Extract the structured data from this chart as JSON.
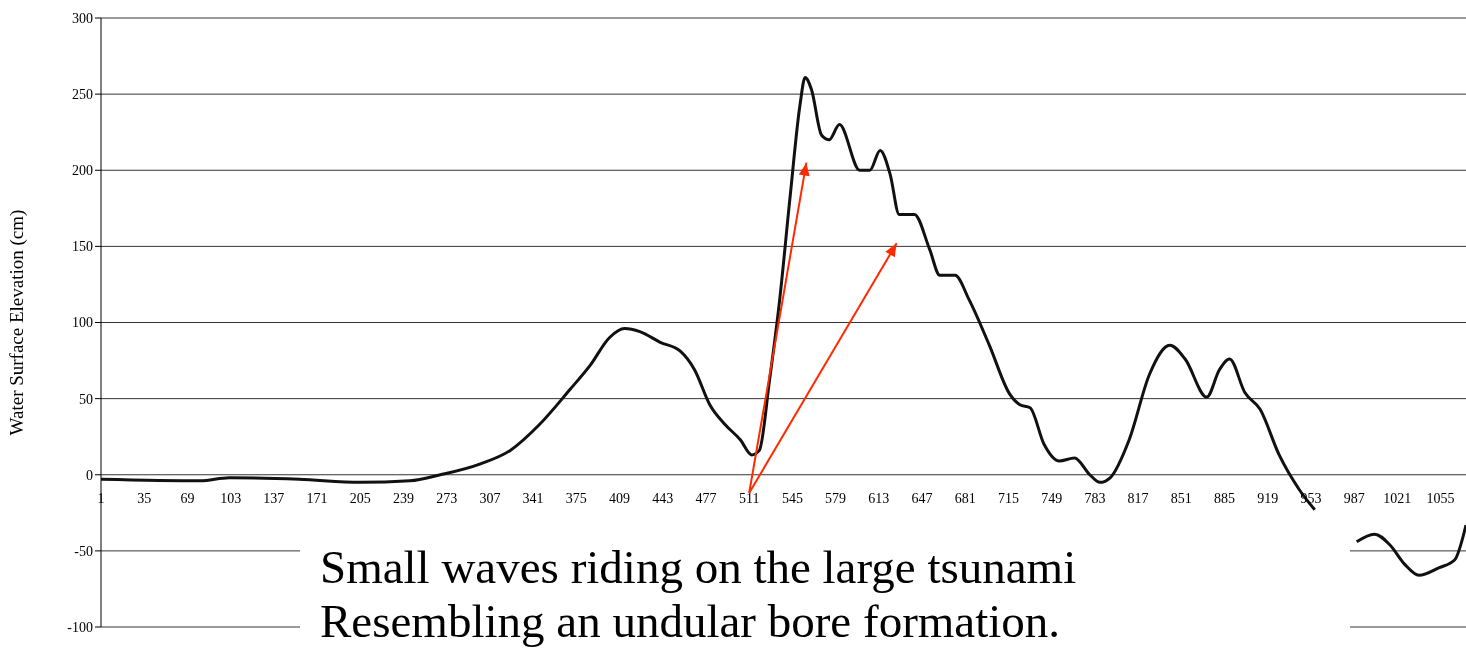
{
  "chart_data": {
    "type": "line",
    "ylabel": "Water Surface Elevation (cm)",
    "annotations": [
      "Small waves riding on the large tsunami",
      "Resembling an undular bore formation."
    ],
    "x": [
      1,
      79,
      102,
      157,
      205,
      244,
      268,
      299,
      323,
      346,
      370,
      386,
      401,
      413,
      425,
      441,
      457,
      468,
      480,
      492,
      504,
      513,
      519,
      527,
      535,
      543,
      551,
      555,
      560,
      568,
      574,
      582,
      598,
      606,
      614,
      622,
      629,
      641,
      653,
      661,
      673,
      684,
      700,
      716,
      724,
      732,
      743,
      755,
      767,
      779,
      787,
      795,
      810,
      826,
      842,
      854,
      871,
      881,
      889,
      901,
      913,
      928,
      944,
      956,
      970,
      989,
      1003,
      1015,
      1027,
      1038,
      1054,
      1066,
      1075
    ],
    "series": [
      {
        "color": "#111111",
        "values": [
          -3,
          -4,
          -2,
          -3,
          -5,
          -4,
          0,
          7,
          16,
          33,
          56,
          72,
          90,
          96,
          94,
          87,
          81,
          69,
          46,
          33,
          23,
          13,
          16,
          62,
          115,
          181,
          243,
          261,
          253,
          223,
          220,
          230,
          200,
          200,
          213,
          197,
          171,
          171,
          148,
          131,
          131,
          115,
          85,
          53,
          46,
          44,
          20,
          9,
          11,
          0,
          -5,
          -2,
          23,
          66,
          85,
          76,
          51,
          69,
          76,
          54,
          43,
          13,
          -10,
          -23,
          null,
          -44,
          -39,
          -46,
          -59,
          -66,
          -61,
          -56,
          -33
        ]
      }
    ],
    "xlim": [
      1,
      1075
    ],
    "xticks": [
      1,
      35,
      69,
      103,
      137,
      171,
      205,
      239,
      273,
      307,
      341,
      375,
      409,
      443,
      477,
      511,
      545,
      579,
      613,
      647,
      681,
      715,
      749,
      783,
      817,
      851,
      885,
      919,
      953,
      987,
      1021,
      1055
    ],
    "ylim": [
      -100,
      300
    ],
    "yticks": [
      -100,
      -50,
      0,
      50,
      100,
      150,
      200,
      250,
      300
    ],
    "grid": "y",
    "legend": false,
    "marker": "none",
    "line_style": "solid"
  }
}
